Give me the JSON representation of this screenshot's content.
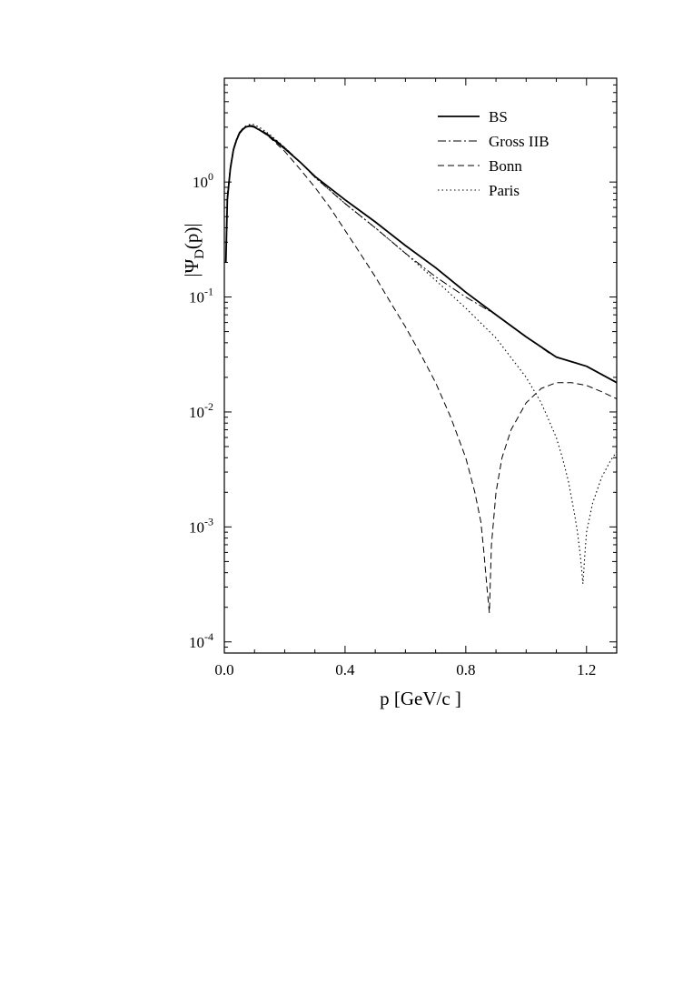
{
  "chart_data": {
    "type": "line",
    "xlabel": "p [GeV/c ]",
    "ylabel": {
      "main": "|Ψ",
      "sub": "D",
      "tail": "(p)|"
    },
    "xlim": [
      0.0,
      1.3
    ],
    "ylim": [
      8e-05,
      8
    ],
    "yscale": "log",
    "grid": false,
    "legend_position": "top-right",
    "x_ticks": [
      {
        "value": 0.0,
        "label": "0.0"
      },
      {
        "value": 0.4,
        "label": "0.4"
      },
      {
        "value": 0.8,
        "label": "0.8"
      },
      {
        "value": 1.2,
        "label": "1.2"
      }
    ],
    "y_ticks": [
      {
        "value": 1,
        "base": "10",
        "exp": "0"
      },
      {
        "value": 0.1,
        "base": "10",
        "exp": "-1"
      },
      {
        "value": 0.01,
        "base": "10",
        "exp": "-2"
      },
      {
        "value": 0.001,
        "base": "10",
        "exp": "-3"
      },
      {
        "value": 0.0001,
        "base": "10",
        "exp": "-4"
      }
    ],
    "series": [
      {
        "name": "BS",
        "style": "solid",
        "x": [
          0.005,
          0.01,
          0.02,
          0.03,
          0.04,
          0.05,
          0.06,
          0.07,
          0.08,
          0.09,
          0.1,
          0.12,
          0.15,
          0.2,
          0.25,
          0.3,
          0.4,
          0.5,
          0.6,
          0.7,
          0.8,
          0.9,
          1.0,
          1.1,
          1.2,
          1.3
        ],
        "y": [
          0.2,
          0.7,
          1.3,
          1.9,
          2.3,
          2.65,
          2.85,
          3.0,
          3.05,
          3.05,
          3.0,
          2.8,
          2.5,
          1.95,
          1.5,
          1.12,
          0.7,
          0.45,
          0.28,
          0.18,
          0.11,
          0.07,
          0.045,
          0.03,
          0.025,
          0.018
        ]
      },
      {
        "name": "Gross IIB",
        "style": "dashdot",
        "x": [
          0.01,
          0.02,
          0.03,
          0.04,
          0.05,
          0.06,
          0.07,
          0.08,
          0.09,
          0.1,
          0.12,
          0.15,
          0.2,
          0.25,
          0.3,
          0.4,
          0.5,
          0.6,
          0.7,
          0.8,
          0.9,
          1.0,
          1.08
        ],
        "y": [
          0.75,
          1.35,
          1.95,
          2.35,
          2.7,
          2.9,
          3.05,
          3.1,
          3.1,
          3.05,
          2.85,
          2.55,
          2.0,
          1.5,
          1.1,
          0.65,
          0.4,
          0.24,
          0.15,
          0.1,
          0.07,
          0.045,
          0.032
        ]
      },
      {
        "name": "Bonn",
        "style": "dashed",
        "x": [
          0.01,
          0.02,
          0.03,
          0.04,
          0.05,
          0.06,
          0.07,
          0.08,
          0.09,
          0.1,
          0.12,
          0.15,
          0.2,
          0.25,
          0.3,
          0.35,
          0.4,
          0.45,
          0.5,
          0.55,
          0.6,
          0.65,
          0.7,
          0.75,
          0.8,
          0.83,
          0.85,
          0.86,
          0.87,
          0.878,
          0.885,
          0.9,
          0.92,
          0.95,
          1.0,
          1.05,
          1.1,
          1.15,
          1.2,
          1.25,
          1.3
        ],
        "y": [
          0.75,
          1.35,
          1.95,
          2.35,
          2.7,
          2.9,
          3.0,
          3.05,
          3.05,
          3.0,
          2.8,
          2.45,
          1.85,
          1.3,
          0.9,
          0.6,
          0.38,
          0.24,
          0.15,
          0.09,
          0.055,
          0.032,
          0.018,
          0.009,
          0.004,
          0.002,
          0.0011,
          0.0006,
          0.0003,
          0.00018,
          0.0007,
          0.002,
          0.004,
          0.007,
          0.012,
          0.016,
          0.018,
          0.018,
          0.017,
          0.015,
          0.013
        ]
      },
      {
        "name": "Paris",
        "style": "dotted",
        "x": [
          0.01,
          0.02,
          0.03,
          0.04,
          0.05,
          0.06,
          0.07,
          0.08,
          0.09,
          0.1,
          0.12,
          0.15,
          0.2,
          0.25,
          0.3,
          0.4,
          0.5,
          0.6,
          0.7,
          0.8,
          0.9,
          1.0,
          1.05,
          1.1,
          1.12,
          1.14,
          1.16,
          1.17,
          1.18,
          1.188,
          1.195,
          1.2,
          1.22,
          1.25,
          1.28,
          1.3
        ],
        "y": [
          0.75,
          1.35,
          1.95,
          2.35,
          2.7,
          2.9,
          3.05,
          3.15,
          3.2,
          3.15,
          2.95,
          2.6,
          2.0,
          1.5,
          1.1,
          0.65,
          0.4,
          0.24,
          0.14,
          0.08,
          0.044,
          0.02,
          0.012,
          0.006,
          0.004,
          0.0025,
          0.0013,
          0.0009,
          0.00055,
          0.00032,
          0.0006,
          0.0009,
          0.0016,
          0.0027,
          0.0038,
          0.0045
        ]
      }
    ]
  }
}
